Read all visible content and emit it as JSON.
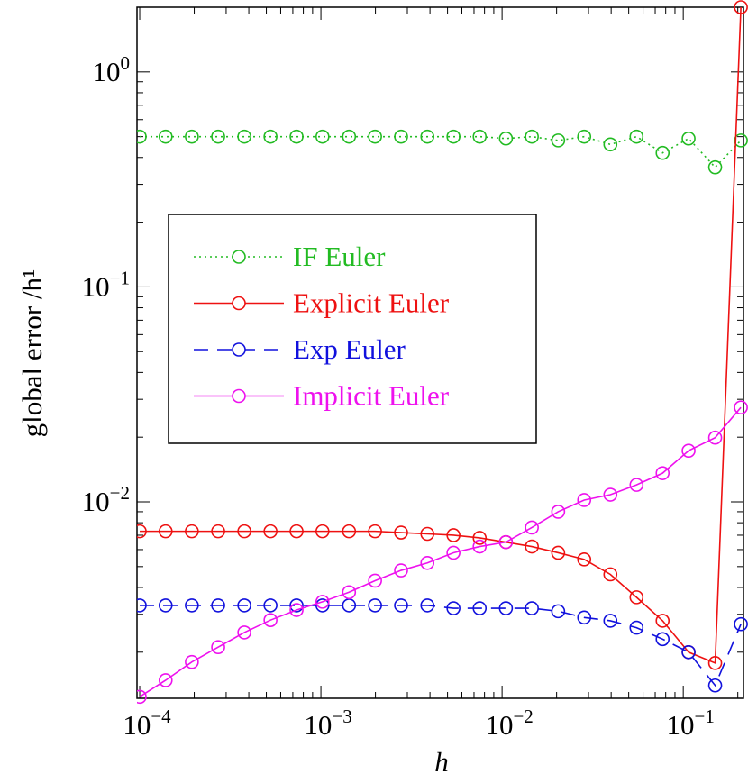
{
  "chart_data": {
    "type": "line",
    "x_label": "h",
    "y_label": "global error /h¹",
    "log_x": true,
    "log_y": true,
    "legend_loc": "center left",
    "marker": "circle",
    "xlim": [
      9.66e-05,
      0.215
    ],
    "ylim": [
      0.00122,
      2.0
    ],
    "xticks": [
      {
        "value": 0.0001,
        "label": "10",
        "exponent": "−4"
      },
      {
        "value": 0.001,
        "label": "10",
        "exponent": "−3"
      },
      {
        "value": 0.01,
        "label": "10",
        "exponent": "−2"
      },
      {
        "value": 0.1,
        "label": "10",
        "exponent": "−1"
      }
    ],
    "yticks": [
      {
        "value": 0.01,
        "label": "10",
        "exponent": "−2"
      },
      {
        "value": 0.1,
        "label": "10",
        "exponent": "−1"
      },
      {
        "value": 1,
        "label": "10",
        "exponent": "0"
      }
    ],
    "x": [
      0.0001,
      0.000139,
      0.000194,
      0.000271,
      0.000378,
      0.000527,
      0.000734,
      0.00102,
      0.00143,
      0.00199,
      0.00277,
      0.00387,
      0.00539,
      0.00752,
      0.0105,
      0.0146,
      0.0204,
      0.0284,
      0.0396,
      0.0552,
      0.0769,
      0.107,
      0.15,
      0.208
    ],
    "series": [
      {
        "name": "IF Euler",
        "color": "#22bb22",
        "dash": "dotted",
        "values": [
          0.5,
          0.5,
          0.5,
          0.5,
          0.5,
          0.5,
          0.5,
          0.5,
          0.5,
          0.5,
          0.5,
          0.5,
          0.5,
          0.5,
          0.49,
          0.5,
          0.48,
          0.5,
          0.46,
          0.5,
          0.42,
          0.49,
          0.36,
          0.48
        ]
      },
      {
        "name": "Explicit Euler",
        "color": "#ee1111",
        "dash": "solid",
        "values": [
          0.0073,
          0.0073,
          0.0073,
          0.0073,
          0.0073,
          0.0073,
          0.0073,
          0.0073,
          0.0073,
          0.0073,
          0.0072,
          0.0071,
          0.007,
          0.0068,
          0.0065,
          0.0062,
          0.0058,
          0.0054,
          0.0046,
          0.0036,
          0.0028,
          0.002,
          0.00178,
          2.0
        ]
      },
      {
        "name": "Exp Euler",
        "color": "#1111dd",
        "dash": "dashed",
        "values": [
          0.0033,
          0.0033,
          0.0033,
          0.0033,
          0.0033,
          0.0033,
          0.0033,
          0.0033,
          0.0033,
          0.0033,
          0.0033,
          0.0033,
          0.0032,
          0.0032,
          0.0032,
          0.0032,
          0.0031,
          0.0029,
          0.0028,
          0.0026,
          0.0023,
          0.002,
          0.0014,
          0.0027
        ]
      },
      {
        "name": "Implicit Euler",
        "color": "#ee11ee",
        "dash": "solid",
        "values": [
          0.00124,
          0.00148,
          0.0018,
          0.00211,
          0.00247,
          0.00282,
          0.00314,
          0.00343,
          0.0038,
          0.0043,
          0.0048,
          0.0052,
          0.0058,
          0.0062,
          0.0065,
          0.0076,
          0.009,
          0.0102,
          0.0108,
          0.012,
          0.0136,
          0.0173,
          0.0199,
          0.0275
        ]
      }
    ]
  }
}
